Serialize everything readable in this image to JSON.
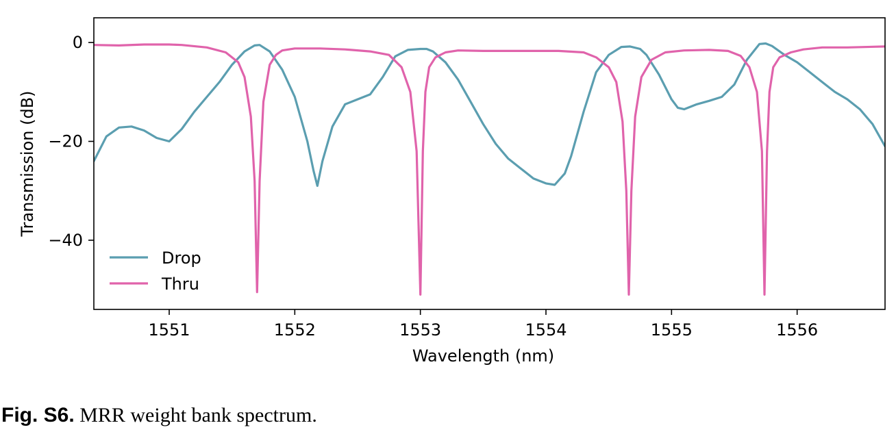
{
  "caption": {
    "label": "Fig. S6.",
    "text": "MRR weight bank spectrum."
  },
  "chart_data": {
    "type": "line",
    "title": "",
    "xlabel": "Wavelength (nm)",
    "ylabel": "Transmission (dB)",
    "xlim": [
      1550.4,
      1556.7
    ],
    "ylim": [
      -54,
      5
    ],
    "xticks": [
      1551,
      1552,
      1553,
      1554,
      1555,
      1556
    ],
    "xtick_labels": [
      "1551",
      "1552",
      "1553",
      "1554",
      "1555",
      "1556"
    ],
    "yticks": [
      0,
      -20,
      -40
    ],
    "ytick_labels": [
      "0",
      "−20",
      "−40"
    ],
    "grid": false,
    "legend_position": "lower-left",
    "series": [
      {
        "name": "Drop",
        "color": "#5b9eb0",
        "x": [
          1550.4,
          1550.5,
          1550.6,
          1550.7,
          1550.8,
          1550.9,
          1551.0,
          1551.1,
          1551.2,
          1551.3,
          1551.4,
          1551.5,
          1551.6,
          1551.68,
          1551.72,
          1551.8,
          1551.9,
          1552.0,
          1552.1,
          1552.15,
          1552.18,
          1552.22,
          1552.3,
          1552.4,
          1552.5,
          1552.6,
          1552.7,
          1552.8,
          1552.9,
          1553.0,
          1553.05,
          1553.1,
          1553.2,
          1553.3,
          1553.4,
          1553.5,
          1553.6,
          1553.7,
          1553.8,
          1553.9,
          1554.0,
          1554.07,
          1554.15,
          1554.2,
          1554.3,
          1554.4,
          1554.5,
          1554.6,
          1554.67,
          1554.75,
          1554.8,
          1554.9,
          1555.0,
          1555.05,
          1555.1,
          1555.2,
          1555.3,
          1555.4,
          1555.5,
          1555.6,
          1555.7,
          1555.75,
          1555.8,
          1555.9,
          1556.0,
          1556.1,
          1556.2,
          1556.3,
          1556.4,
          1556.5,
          1556.6,
          1556.7
        ],
        "y": [
          -24,
          -19,
          -17.2,
          -17,
          -17.8,
          -19.3,
          -20,
          -17.5,
          -14,
          -11,
          -8,
          -4.5,
          -1.8,
          -0.6,
          -0.5,
          -1.8,
          -5.5,
          -11,
          -20,
          -26,
          -29,
          -24,
          -17,
          -12.5,
          -11.5,
          -10.5,
          -7,
          -2.8,
          -1.5,
          -1.3,
          -1.3,
          -1.8,
          -4,
          -7.5,
          -12,
          -16.5,
          -20.5,
          -23.5,
          -25.5,
          -27.5,
          -28.5,
          -28.8,
          -26.5,
          -23,
          -14,
          -6,
          -2.5,
          -0.9,
          -0.8,
          -1.3,
          -2.5,
          -6.5,
          -11.5,
          -13.2,
          -13.5,
          -12.5,
          -11.8,
          -11,
          -8.5,
          -3.5,
          -0.3,
          -0.2,
          -0.7,
          -2.5,
          -4,
          -6,
          -8,
          -10,
          -11.5,
          -13.5,
          -16.5,
          -21
        ]
      },
      {
        "name": "Thru",
        "color": "#e063ab",
        "x": [
          1550.4,
          1550.6,
          1550.8,
          1551.0,
          1551.1,
          1551.3,
          1551.45,
          1551.55,
          1551.6,
          1551.65,
          1551.68,
          1551.7,
          1551.72,
          1551.75,
          1551.8,
          1551.85,
          1551.9,
          1552.0,
          1552.2,
          1552.4,
          1552.6,
          1552.75,
          1552.85,
          1552.92,
          1552.97,
          1553.0,
          1553.02,
          1553.04,
          1553.07,
          1553.12,
          1553.2,
          1553.3,
          1553.5,
          1553.8,
          1554.1,
          1554.3,
          1554.4,
          1554.5,
          1554.56,
          1554.61,
          1554.64,
          1554.66,
          1554.68,
          1554.71,
          1554.76,
          1554.84,
          1554.95,
          1555.1,
          1555.3,
          1555.45,
          1555.55,
          1555.62,
          1555.68,
          1555.72,
          1555.74,
          1555.76,
          1555.78,
          1555.81,
          1555.86,
          1555.95,
          1556.05,
          1556.2,
          1556.4,
          1556.7
        ],
        "y": [
          -0.5,
          -0.6,
          -0.4,
          -0.4,
          -0.5,
          -1.0,
          -2.0,
          -4.0,
          -7.0,
          -15.0,
          -28.0,
          -50.5,
          -28.0,
          -12.0,
          -4.5,
          -2.5,
          -1.6,
          -1.2,
          -1.2,
          -1.4,
          -1.8,
          -2.5,
          -5.0,
          -10.0,
          -22.0,
          -51.0,
          -22.0,
          -10.0,
          -5.0,
          -3.0,
          -2.0,
          -1.6,
          -1.7,
          -1.7,
          -1.7,
          -2.0,
          -3.0,
          -5.0,
          -8.0,
          -16.0,
          -30.0,
          -51.0,
          -30.0,
          -15.0,
          -7.0,
          -3.5,
          -2.0,
          -1.6,
          -1.5,
          -1.7,
          -2.7,
          -5.0,
          -10.0,
          -22.0,
          -51.0,
          -22.0,
          -10.0,
          -5.0,
          -3.0,
          -2.0,
          -1.4,
          -1.0,
          -1.0,
          -0.8
        ]
      }
    ]
  }
}
